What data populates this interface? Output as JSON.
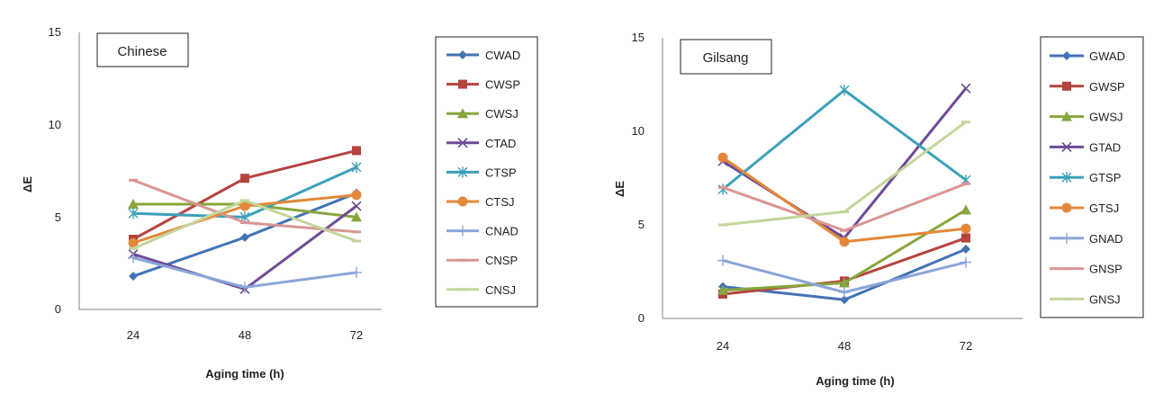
{
  "chart_data": [
    {
      "type": "line",
      "title": "Chinese",
      "xlabel": "Aging time (h)",
      "ylabel": "ΔE",
      "categories": [
        "24",
        "48",
        "72"
      ],
      "ylim": [
        0,
        15
      ],
      "yticks": [
        "0",
        "5",
        "10",
        "15"
      ],
      "series": [
        {
          "name": "CWAD",
          "color": "#4473b5",
          "marker": "diamond",
          "values": [
            1.8,
            3.9,
            6.3
          ]
        },
        {
          "name": "CWSP",
          "color": "#b5443e",
          "marker": "square",
          "values": [
            3.8,
            7.1,
            8.6
          ]
        },
        {
          "name": "CWSJ",
          "color": "#86a63e",
          "marker": "triangle",
          "values": [
            5.7,
            5.7,
            5.0
          ]
        },
        {
          "name": "CTAD",
          "color": "#6e4b96",
          "marker": "x",
          "values": [
            3.0,
            1.1,
            5.6
          ]
        },
        {
          "name": "CTSP",
          "color": "#3ba0b8",
          "marker": "star",
          "values": [
            5.2,
            5.0,
            7.7
          ]
        },
        {
          "name": "CTSJ",
          "color": "#e3883a",
          "marker": "circle",
          "values": [
            3.6,
            5.6,
            6.2
          ]
        },
        {
          "name": "CNAD",
          "color": "#8aa5d8",
          "marker": "plus",
          "values": [
            2.8,
            1.2,
            2.0
          ]
        },
        {
          "name": "CNSP",
          "color": "#d99694",
          "marker": "dash",
          "values": [
            7.0,
            4.7,
            4.2
          ]
        },
        {
          "name": "CNSJ",
          "color": "#c3d69b",
          "marker": "dash",
          "values": [
            3.3,
            5.9,
            3.7
          ]
        }
      ]
    },
    {
      "type": "line",
      "title": "Gilsang",
      "xlabel": "Aging time (h)",
      "ylabel": "ΔE",
      "categories": [
        "24",
        "48",
        "72"
      ],
      "ylim": [
        0,
        15
      ],
      "yticks": [
        "0",
        "5",
        "10",
        "15"
      ],
      "series": [
        {
          "name": "GWAD",
          "color": "#4473b5",
          "marker": "diamond",
          "values": [
            1.7,
            1.0,
            3.7
          ]
        },
        {
          "name": "GWSP",
          "color": "#b5443e",
          "marker": "square",
          "values": [
            1.3,
            2.0,
            4.3
          ]
        },
        {
          "name": "GWSJ",
          "color": "#86a63e",
          "marker": "triangle",
          "values": [
            1.5,
            1.9,
            5.8
          ]
        },
        {
          "name": "GTAD",
          "color": "#6e4b96",
          "marker": "x",
          "values": [
            8.4,
            4.3,
            12.3
          ]
        },
        {
          "name": "GTSP",
          "color": "#3ba0b8",
          "marker": "star",
          "values": [
            6.9,
            12.2,
            7.4
          ]
        },
        {
          "name": "GTSJ",
          "color": "#e3883a",
          "marker": "circle",
          "values": [
            8.6,
            4.1,
            4.8
          ]
        },
        {
          "name": "GNAD",
          "color": "#8aa5d8",
          "marker": "plus",
          "values": [
            3.1,
            1.4,
            3.0
          ]
        },
        {
          "name": "GNSP",
          "color": "#d99694",
          "marker": "dash",
          "values": [
            7.0,
            4.7,
            7.2
          ]
        },
        {
          "name": "GNSJ",
          "color": "#c3d69b",
          "marker": "dash",
          "values": [
            5.0,
            5.7,
            10.5
          ]
        }
      ]
    }
  ]
}
